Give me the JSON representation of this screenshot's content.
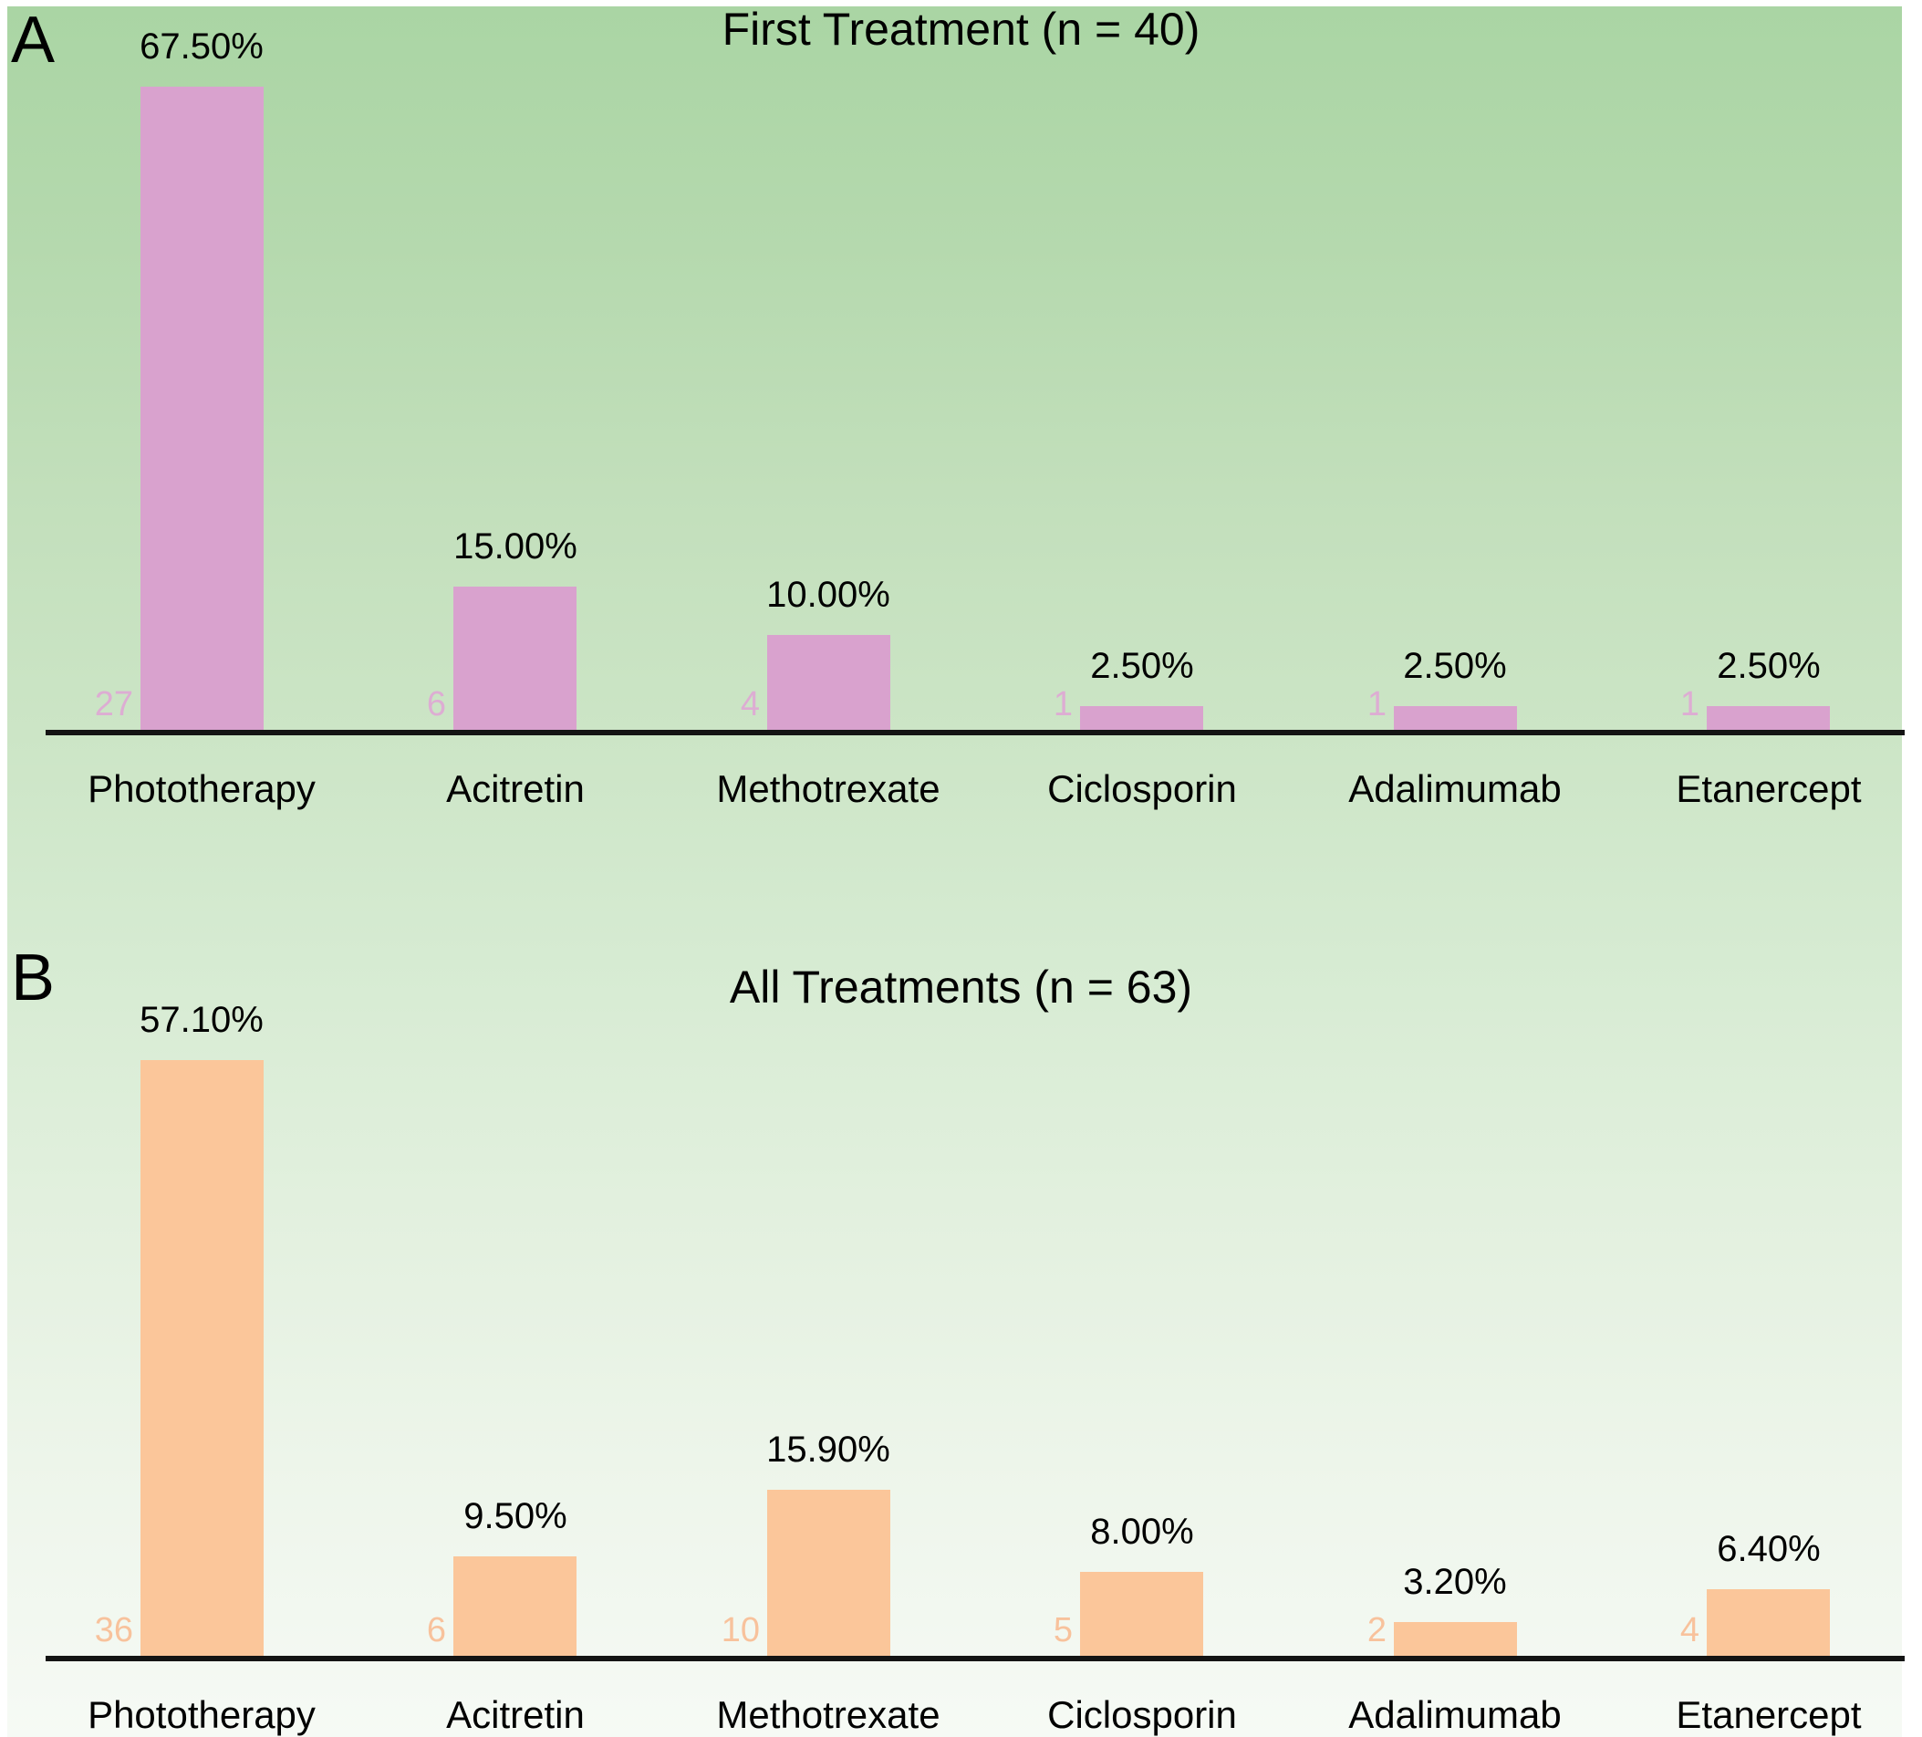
{
  "colors": {
    "background_top": "#aad5a4",
    "background_bottom": "#f6faf5",
    "panel_a_bar": "#d9a2ce",
    "panel_a_count_label": "#ddadd3",
    "panel_b_bar": "#fbc69a",
    "panel_b_count_label": "#f8c29c",
    "axis_line": "#141414",
    "text": "#000000"
  },
  "chart_data": [
    {
      "type": "bar",
      "panel": "A",
      "title": "First Treatment (n = 40)",
      "categories": [
        "Phototherapy",
        "Acitretin",
        "Methotrexate",
        "Ciclosporin",
        "Adalimumab",
        "Etanercept"
      ],
      "values": [
        67.5,
        15.0,
        10.0,
        2.5,
        2.5,
        2.5
      ],
      "percent_labels": [
        "67.50%",
        "15.00%",
        "10.00%",
        "2.50%",
        "2.50%",
        "2.50%"
      ],
      "counts": [
        27,
        6,
        4,
        1,
        1,
        1
      ],
      "bar_color": "#d9a2ce",
      "count_label_color": "#ddadd3",
      "xlabel": "",
      "ylabel": "",
      "ylim": [
        0,
        70
      ],
      "grid": false,
      "legend": "none"
    },
    {
      "type": "bar",
      "panel": "B",
      "title": "All Treatments (n = 63)",
      "categories": [
        "Phototherapy",
        "Acitretin",
        "Methotrexate",
        "Ciclosporin",
        "Adalimumab",
        "Etanercept"
      ],
      "values": [
        57.1,
        9.5,
        15.9,
        8.0,
        3.2,
        6.4
      ],
      "percent_labels": [
        "57.10%",
        "9.50%",
        "15.90%",
        "8.00%",
        "3.20%",
        "6.40%"
      ],
      "counts": [
        36,
        6,
        10,
        5,
        2,
        4
      ],
      "bar_color": "#fbc69a",
      "count_label_color": "#f8c29c",
      "xlabel": "",
      "ylabel": "",
      "ylim": [
        0,
        60
      ],
      "grid": false,
      "legend": "none"
    }
  ]
}
